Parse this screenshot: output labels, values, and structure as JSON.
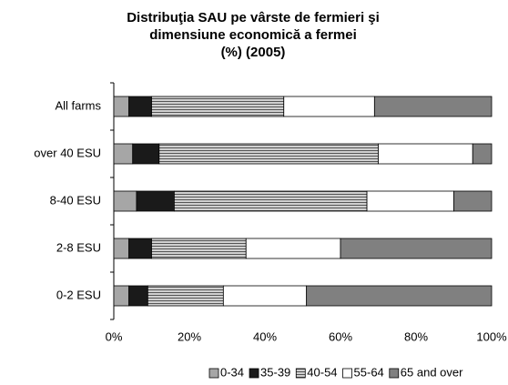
{
  "chart_data": {
    "type": "stacked_barh",
    "title": [
      "Distribuţia SAU pe vârste de fermieri şi",
      "dimensiune economică a fermei",
      "(%) (2005)"
    ],
    "categories": [
      "All farms",
      "over 40 ESU",
      "8-40 ESU",
      "2-8 ESU",
      "0-2 ESU"
    ],
    "series": [
      {
        "name": "0-34",
        "color": "#a6a6a6",
        "values": [
          4,
          5,
          6,
          4,
          4
        ]
      },
      {
        "name": "35-39",
        "color": "#1a1a1a",
        "values": [
          6,
          7,
          10,
          6,
          5
        ]
      },
      {
        "name": "40-54",
        "color": "#9a9a9a",
        "values": [
          35,
          58,
          51,
          25,
          20
        ]
      },
      {
        "name": "55-64",
        "color": "#ffffff",
        "values": [
          24,
          25,
          23,
          25,
          22
        ]
      },
      {
        "name": "65 and over",
        "color": "#808080",
        "values": [
          31,
          5,
          10,
          40,
          49
        ]
      }
    ],
    "xlim": [
      0,
      100
    ],
    "xticks": [
      {
        "value": 0,
        "label": "0%"
      },
      {
        "value": 20,
        "label": "20%"
      },
      {
        "value": 40,
        "label": "40%"
      },
      {
        "value": 60,
        "label": "60%"
      },
      {
        "value": 80,
        "label": "80%"
      },
      {
        "value": 100,
        "label": "100%"
      }
    ],
    "legend": "bottom"
  }
}
